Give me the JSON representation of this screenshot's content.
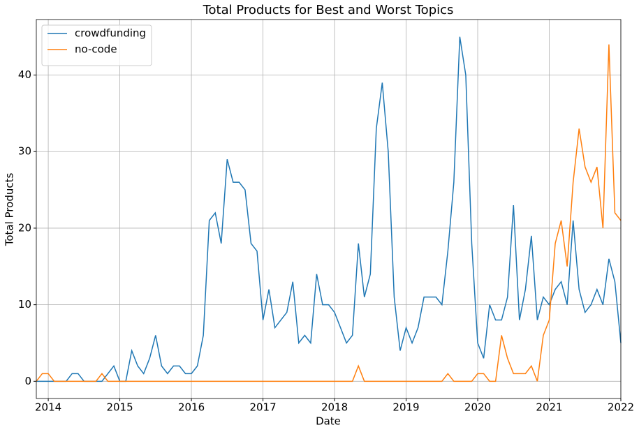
{
  "chart_data": {
    "type": "line",
    "title": "Total Products for Best and Worst Topics",
    "x_label": "Date",
    "y_label": "Total Products",
    "x": [
      "2013-11",
      "2013-12",
      "2014-01",
      "2014-02",
      "2014-03",
      "2014-04",
      "2014-05",
      "2014-06",
      "2014-07",
      "2014-08",
      "2014-09",
      "2014-10",
      "2014-11",
      "2014-12",
      "2015-01",
      "2015-02",
      "2015-03",
      "2015-04",
      "2015-05",
      "2015-06",
      "2015-07",
      "2015-08",
      "2015-09",
      "2015-10",
      "2015-11",
      "2015-12",
      "2016-01",
      "2016-02",
      "2016-03",
      "2016-04",
      "2016-05",
      "2016-06",
      "2016-07",
      "2016-08",
      "2016-09",
      "2016-10",
      "2016-11",
      "2016-12",
      "2017-01",
      "2017-02",
      "2017-03",
      "2017-04",
      "2017-05",
      "2017-06",
      "2017-07",
      "2017-08",
      "2017-09",
      "2017-10",
      "2017-11",
      "2017-12",
      "2018-01",
      "2018-02",
      "2018-03",
      "2018-04",
      "2018-05",
      "2018-06",
      "2018-07",
      "2018-08",
      "2018-09",
      "2018-10",
      "2018-11",
      "2018-12",
      "2019-01",
      "2019-02",
      "2019-03",
      "2019-04",
      "2019-05",
      "2019-06",
      "2019-07",
      "2019-08",
      "2019-09",
      "2019-10",
      "2019-11",
      "2019-12",
      "2020-01",
      "2020-02",
      "2020-03",
      "2020-04",
      "2020-05",
      "2020-06",
      "2020-07",
      "2020-08",
      "2020-09",
      "2020-10",
      "2020-11",
      "2020-12",
      "2021-01",
      "2021-02",
      "2021-03",
      "2021-04",
      "2021-05",
      "2021-06",
      "2021-07",
      "2021-08",
      "2021-09",
      "2021-10",
      "2021-11",
      "2021-12",
      "2022-01"
    ],
    "series": [
      {
        "name": "crowdfunding",
        "color": "#1f77b4",
        "values": [
          0,
          0,
          0,
          0,
          0,
          0,
          1,
          1,
          0,
          0,
          0,
          0,
          1,
          2,
          0,
          0,
          4,
          2,
          1,
          3,
          6,
          2,
          1,
          2,
          2,
          1,
          1,
          2,
          6,
          21,
          22,
          18,
          29,
          26,
          26,
          25,
          18,
          17,
          8,
          12,
          7,
          8,
          9,
          13,
          5,
          6,
          5,
          14,
          10,
          10,
          9,
          7,
          5,
          6,
          18,
          11,
          14,
          33,
          39,
          30,
          11,
          4,
          7,
          5,
          7,
          11,
          11,
          11,
          10,
          17,
          26,
          45,
          40,
          18,
          5,
          3,
          10,
          8,
          8,
          11,
          23,
          8,
          12,
          19,
          8,
          11,
          10,
          12,
          13,
          10,
          21,
          12,
          9,
          10,
          12,
          10,
          16,
          13,
          5
        ]
      },
      {
        "name": "no-code",
        "color": "#ff7f0e",
        "values": [
          0,
          1,
          1,
          0,
          0,
          0,
          0,
          0,
          0,
          0,
          0,
          1,
          0,
          0,
          0,
          0,
          0,
          0,
          0,
          0,
          0,
          0,
          0,
          0,
          0,
          0,
          0,
          0,
          0,
          0,
          0,
          0,
          0,
          0,
          0,
          0,
          0,
          0,
          0,
          0,
          0,
          0,
          0,
          0,
          0,
          0,
          0,
          0,
          0,
          0,
          0,
          0,
          0,
          0,
          2,
          0,
          0,
          0,
          0,
          0,
          0,
          0,
          0,
          0,
          0,
          0,
          0,
          0,
          0,
          1,
          0,
          0,
          0,
          0,
          1,
          1,
          0,
          0,
          6,
          3,
          1,
          1,
          1,
          2,
          0,
          6,
          8,
          18,
          21,
          15,
          26,
          33,
          28,
          26,
          28,
          20,
          44,
          22,
          21
        ]
      }
    ],
    "xlim": [
      "2013-11",
      "2022-01"
    ],
    "xticks": [
      {
        "value": "2014-01",
        "label": "2014"
      },
      {
        "value": "2015-01",
        "label": "2015"
      },
      {
        "value": "2016-01",
        "label": "2016"
      },
      {
        "value": "2017-01",
        "label": "2017"
      },
      {
        "value": "2018-01",
        "label": "2018"
      },
      {
        "value": "2019-01",
        "label": "2019"
      },
      {
        "value": "2020-01",
        "label": "2020"
      },
      {
        "value": "2021-01",
        "label": "2021"
      },
      {
        "value": "2022-01",
        "label": "2022"
      }
    ],
    "ylim": [
      -2.25,
      47.25
    ],
    "yticks": [
      0,
      10,
      20,
      30,
      40
    ],
    "grid": true,
    "legend": "upper left"
  }
}
